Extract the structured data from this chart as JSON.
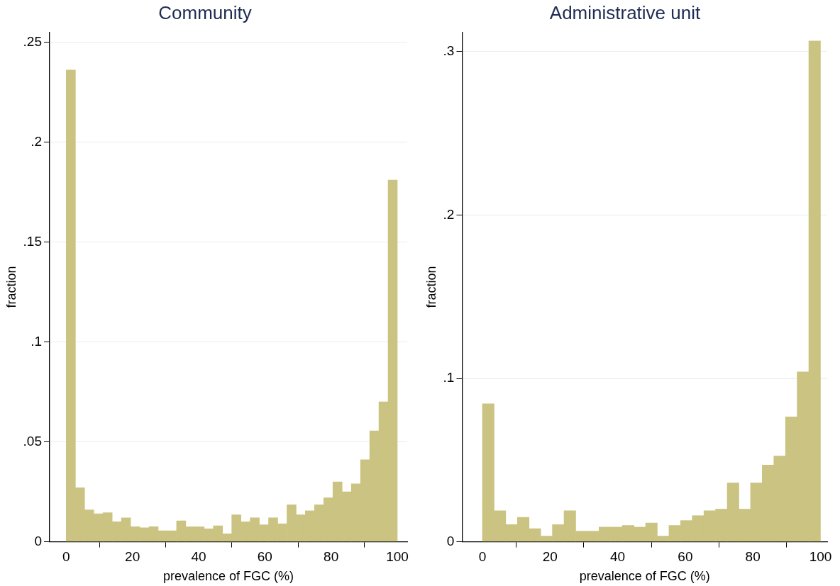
{
  "chart_data": [
    {
      "type": "histogram",
      "title": "Community",
      "xlabel": "prevalence of FGC (%)",
      "ylabel": "fraction",
      "color": "#cbc382",
      "grid": "y",
      "bins": [
        0,
        2.778,
        5.556,
        8.333,
        11.111,
        13.889,
        16.667,
        19.444,
        22.222,
        25,
        27.778,
        30.556,
        33.333,
        36.111,
        38.889,
        41.667,
        44.444,
        47.222,
        50,
        52.778,
        55.556,
        58.333,
        61.111,
        63.889,
        66.667,
        69.444,
        72.222,
        75,
        77.778,
        80.556,
        83.333,
        86.111,
        88.889,
        91.667,
        94.444,
        97.222,
        100
      ],
      "values": [
        0.236,
        0.027,
        0.016,
        0.014,
        0.0145,
        0.01,
        0.012,
        0.0075,
        0.007,
        0.0075,
        0.0055,
        0.0055,
        0.0105,
        0.0075,
        0.0075,
        0.0065,
        0.008,
        0.004,
        0.0135,
        0.01,
        0.012,
        0.0085,
        0.012,
        0.009,
        0.0185,
        0.0135,
        0.0155,
        0.0185,
        0.022,
        0.03,
        0.025,
        0.029,
        0.041,
        0.0555,
        0.07,
        0.181
      ],
      "xlim": [
        -5,
        103
      ],
      "xticks": [
        0,
        20,
        40,
        60,
        80,
        100
      ],
      "ylim": [
        0,
        0.255
      ],
      "yticks": [
        0,
        {
          "value": 0.05,
          "label": ".05"
        },
        {
          "value": 0.1,
          "label": ".1"
        },
        {
          "value": 0.15,
          "label": ".15"
        },
        {
          "value": 0.2,
          "label": ".2"
        },
        {
          "value": 0.25,
          "label": ".25"
        }
      ]
    },
    {
      "type": "histogram",
      "title": "Administrative unit",
      "xlabel": "prevalence of FGC (%)",
      "ylabel": "fraction",
      "color": "#cbc382",
      "grid": "y",
      "bins": [
        0,
        3.448,
        6.897,
        10.345,
        13.793,
        17.241,
        20.69,
        24.138,
        27.586,
        31.034,
        34.483,
        37.931,
        41.379,
        44.828,
        48.276,
        51.724,
        55.172,
        58.621,
        62.069,
        65.517,
        68.966,
        72.414,
        75.862,
        79.31,
        82.759,
        86.207,
        89.655,
        93.103,
        96.552,
        100
      ],
      "values": [
        0.0845,
        0.019,
        0.0105,
        0.015,
        0.008,
        0.0035,
        0.0105,
        0.019,
        0.0065,
        0.0065,
        0.009,
        0.009,
        0.01,
        0.009,
        0.0115,
        0.0035,
        0.01,
        0.013,
        0.016,
        0.019,
        0.02,
        0.036,
        0.02,
        0.036,
        0.047,
        0.0525,
        0.0765,
        0.104,
        0.3065
      ],
      "xlim": [
        -6,
        102
      ],
      "xticks": [
        0,
        20,
        40,
        60,
        80,
        100
      ],
      "ylim": [
        0,
        0.312
      ],
      "yticks": [
        0,
        {
          "value": 0.1,
          "label": ".1"
        },
        {
          "value": 0.2,
          "label": ".2"
        },
        {
          "value": 0.3,
          "label": ".3"
        }
      ]
    }
  ]
}
